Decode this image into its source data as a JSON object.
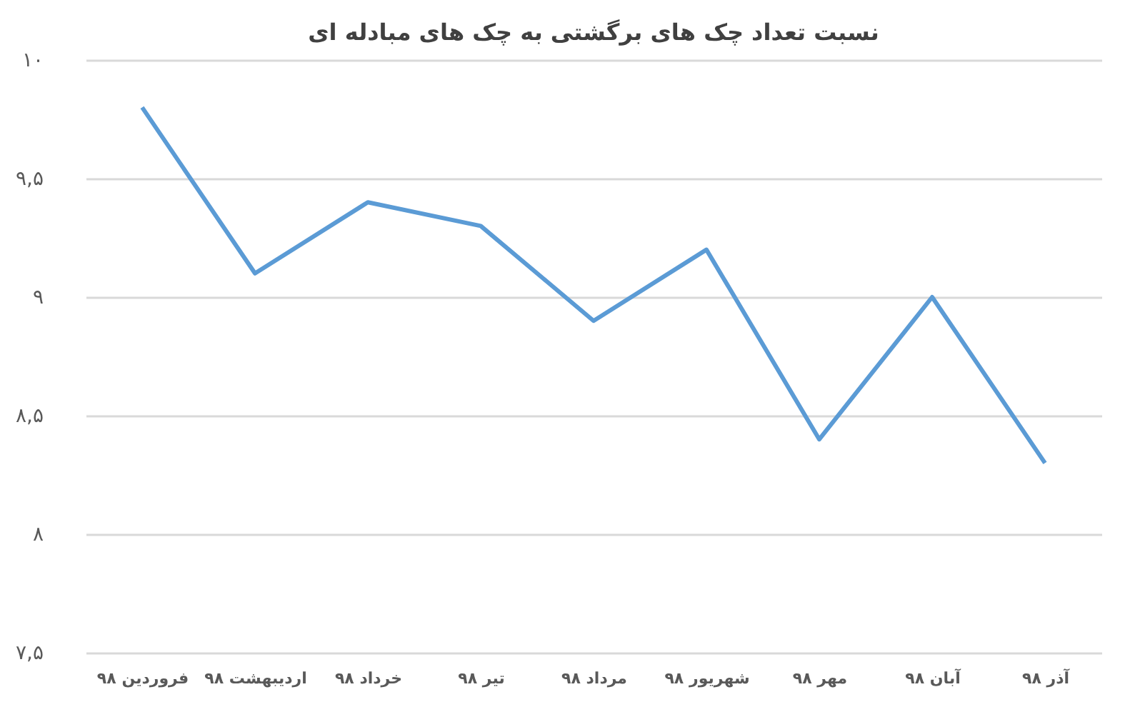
{
  "chart_data": {
    "type": "line",
    "title": "نسبت تعداد چک های برگشتی به چک های مبادله ای",
    "categories": [
      "فروردین ۹۸",
      "اردیبهشت ۹۸",
      "خرداد ۹۸",
      "تیر ۹۸",
      "مرداد ۹۸",
      "شهریور ۹۸",
      "مهر ۹۸",
      "آبان ۹۸",
      "آذر ۹۸"
    ],
    "series": [
      {
        "color": "#5b9bd5",
        "values": [
          9.8,
          9.1,
          9.4,
          9.3,
          8.9,
          9.2,
          8.4,
          9.0,
          8.3
        ]
      }
    ],
    "ylim": [
      7.5,
      10
    ],
    "yticks": [
      {
        "value": 7.5,
        "label": "۷,۵"
      },
      {
        "value": 8,
        "label": "۸"
      },
      {
        "value": 8.5,
        "label": "۸,۵"
      },
      {
        "value": 9,
        "label": "۹"
      },
      {
        "value": 9.5,
        "label": "۹,۵"
      },
      {
        "value": 10,
        "label": "۱۰"
      }
    ],
    "grid": "y",
    "marker": "none",
    "line_style": "solid",
    "legend": false
  }
}
